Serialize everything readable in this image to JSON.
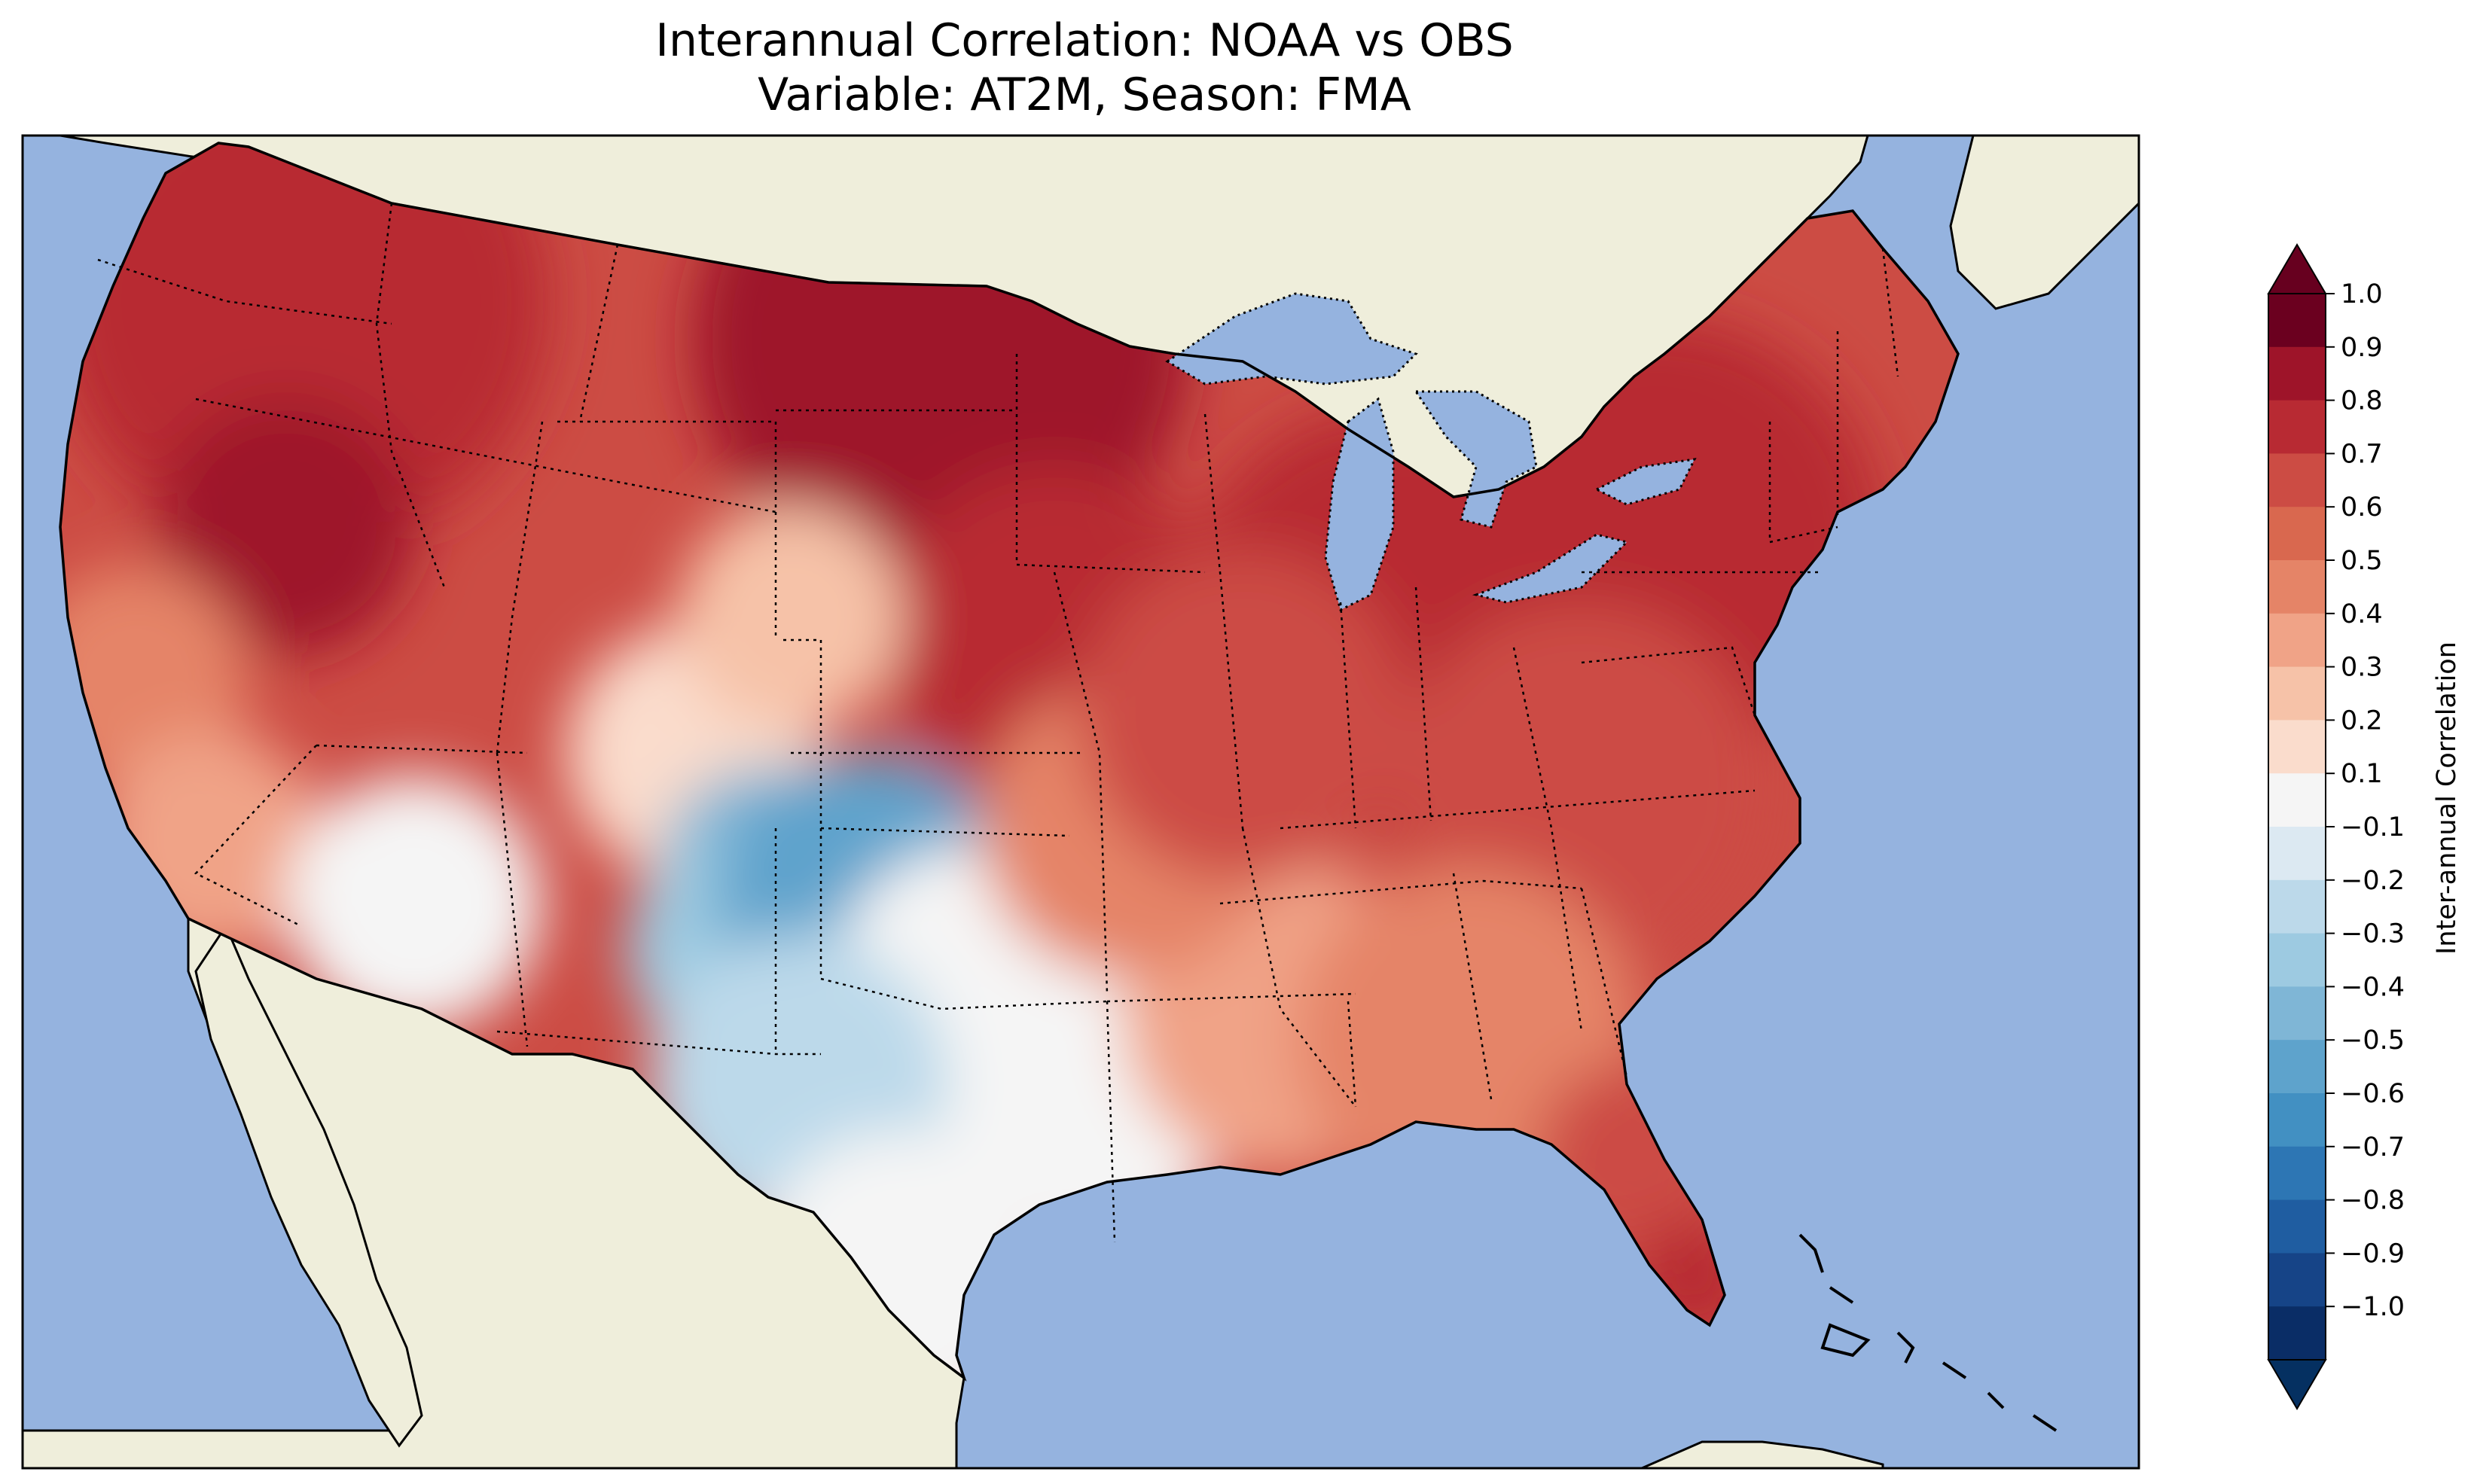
{
  "title": {
    "line1": "Interannual Correlation: NOAA vs OBS",
    "line2": "Variable: AT2M, Season: FMA"
  },
  "colorbar": {
    "label": "Inter-annual Correlation",
    "ticks": [
      "1.0",
      "0.9",
      "0.8",
      "0.7",
      "0.6",
      "0.5",
      "0.4",
      "0.3",
      "0.2",
      "0.1",
      "−0.1",
      "−0.2",
      "−0.3",
      "−0.4",
      "−0.5",
      "−0.6",
      "−0.7",
      "−0.8",
      "−0.9",
      "−1.0"
    ],
    "colors": [
      "#6b001f",
      "#9e1429",
      "#b82a33",
      "#cc4c44",
      "#d9684f",
      "#e58467",
      "#f0a387",
      "#f6c2a8",
      "#fadccc",
      "#f5f5f5",
      "#dce9f2",
      "#bcd9ea",
      "#9dcae1",
      "#7fb6d6",
      "#5ea3cc",
      "#4290c2",
      "#2d76b4",
      "#1f5da1",
      "#164487",
      "#0a2d66"
    ],
    "over_color": "#67001f",
    "under_color": "#053061"
  },
  "map": {
    "ocean_color": "#95b3df",
    "land_color": "#efeedb",
    "region": "CONUS",
    "field_summary": "positive correlation north/east, negative over southern Rockies/Texas panhandle"
  }
}
